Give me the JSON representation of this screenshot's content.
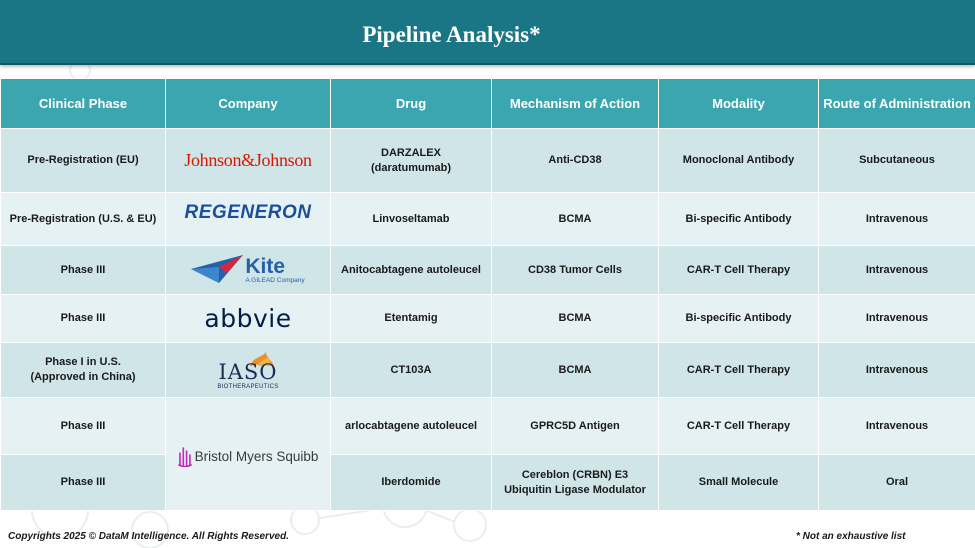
{
  "header": {
    "title": "Pipeline Analysis*"
  },
  "table": {
    "columns": [
      "Clinical Phase",
      "Company",
      "Drug",
      "Mechanism of Action",
      "Modality",
      "Route of Administration"
    ],
    "rows": [
      {
        "phase": "Pre-Registration (EU)",
        "company": "Johnson&Johnson",
        "drug": "DARZALEX (daratumumab)",
        "mechanism": "Anti-CD38",
        "modality": "Monoclonal Antibody",
        "route": "Subcutaneous"
      },
      {
        "phase": "Pre-Registration (U.S. & EU)",
        "company": "REGENERON",
        "drug": "Linvoseltamab",
        "mechanism": "BCMA",
        "modality": "Bi-specific Antibody",
        "route": "Intravenous"
      },
      {
        "phase": "Phase III",
        "company": "Kite",
        "company_sub": "A GILEAD Company",
        "drug": "Anitocabtagene autoleucel",
        "mechanism": "CD38 Tumor Cells",
        "modality": "CAR-T Cell Therapy",
        "route": "Intravenous"
      },
      {
        "phase": "Phase III",
        "company": "abbvie",
        "drug": "Etentamig",
        "mechanism": "BCMA",
        "modality": "Bi-specific Antibody",
        "route": "Intravenous"
      },
      {
        "phase_line1": "Phase I in U.S.",
        "phase_line2": "(Approved in China)",
        "company": "IASO",
        "company_sub": "BIOTHERAPEUTICS",
        "drug": "CT103A",
        "mechanism": "BCMA",
        "modality": "CAR-T Cell Therapy",
        "route": "Intravenous"
      },
      {
        "phase": "Phase III",
        "company": "Bristol Myers Squibb",
        "drug": "arlocabtagene autoleucel",
        "mechanism": "GPRC5D Antigen",
        "modality": "CAR-T Cell Therapy",
        "route": "Intravenous"
      },
      {
        "phase": "Phase III",
        "drug": "Iberdomide",
        "mechanism_line1": "Cereblon (CRBN) E3",
        "mechanism_line2": "Ubiquitin Ligase Modulator",
        "modality": "Small Molecule",
        "route": "Oral"
      }
    ]
  },
  "footer": {
    "copyright": "Copyrights 2025 © DataM Intelligence. All Rights Reserved.",
    "note": "* Not an exhaustive list"
  },
  "colors": {
    "header_bg": "#1a7585",
    "table_header_bg": "#3ba5b0",
    "row_dark": "#cfe5e8",
    "row_light": "#e6f1f3",
    "jnj_red": "#d51900",
    "regeneron_blue": "#1b4f9c",
    "kite_blue": "#2560a8",
    "kite_red": "#d6273a",
    "abbvie_navy": "#071d49",
    "iaso_navy": "#1e2a52",
    "iaso_orange": "#e8902a",
    "bms_purple": "#be2bbb"
  }
}
